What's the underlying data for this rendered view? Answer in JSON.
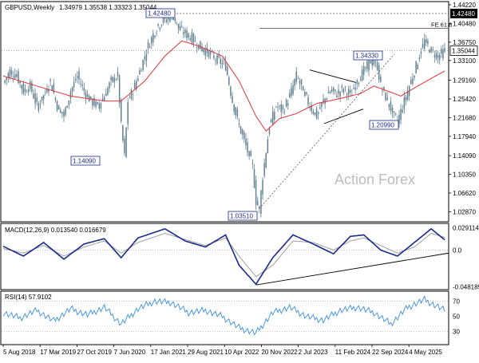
{
  "header": {
    "symbol": "GBPUSD,Weekly",
    "ohlc": "1.34979 1.35538 1.33323 1.35044"
  },
  "watermark": "Action Forex",
  "colors": {
    "candle": "#5f7f8f",
    "ma": "#e0333a",
    "macd": "#1a2a8a",
    "signal": "#a0a0a0",
    "rsi": "#3a8fe0",
    "label_border": "#1a2a8a",
    "label_text": "#1a2a8a",
    "dark_label_bg": "#000000"
  },
  "chart_data": [
    {
      "type": "candlestick",
      "title": "GBPUSD,Weekly",
      "price_axis": [
        "1.44220",
        "1.40480",
        "1.36750",
        "1.33100",
        "1.29160",
        "1.25420",
        "1.21680",
        "1.17940",
        "1.14090",
        "1.10350",
        "1.06620",
        "1.02870"
      ],
      "current_price_label": "1.35044",
      "ylim": [
        1.012,
        1.4422
      ],
      "close_path": [
        [
          0,
          1.285
        ],
        [
          4,
          1.31
        ],
        [
          8,
          1.3
        ],
        [
          12,
          1.27
        ],
        [
          16,
          1.28
        ],
        [
          20,
          1.24
        ],
        [
          24,
          1.26
        ],
        [
          28,
          1.29
        ],
        [
          32,
          1.24
        ],
        [
          36,
          1.22
        ],
        [
          40,
          1.27
        ],
        [
          44,
          1.3
        ],
        [
          48,
          1.27
        ],
        [
          52,
          1.25
        ],
        [
          56,
          1.24
        ],
        [
          60,
          1.26
        ],
        [
          64,
          1.29
        ],
        [
          68,
          1.3
        ],
        [
          70,
          1.2
        ],
        [
          72,
          1.14
        ],
        [
          74,
          1.25
        ],
        [
          78,
          1.28
        ],
        [
          82,
          1.32
        ],
        [
          86,
          1.36
        ],
        [
          90,
          1.39
        ],
        [
          94,
          1.41
        ],
        [
          98,
          1.415
        ],
        [
          101,
          1.42
        ],
        [
          104,
          1.395
        ],
        [
          108,
          1.385
        ],
        [
          112,
          1.375
        ],
        [
          116,
          1.36
        ],
        [
          120,
          1.35
        ],
        [
          124,
          1.34
        ],
        [
          128,
          1.33
        ],
        [
          132,
          1.32
        ],
        [
          136,
          1.25
        ],
        [
          140,
          1.2
        ],
        [
          144,
          1.16
        ],
        [
          148,
          1.12
        ],
        [
          150,
          1.05
        ],
        [
          152,
          1.035
        ],
        [
          154,
          1.1
        ],
        [
          158,
          1.2
        ],
        [
          162,
          1.24
        ],
        [
          166,
          1.23
        ],
        [
          170,
          1.26
        ],
        [
          174,
          1.3
        ],
        [
          178,
          1.27
        ],
        [
          182,
          1.24
        ],
        [
          186,
          1.22
        ],
        [
          190,
          1.25
        ],
        [
          194,
          1.27
        ],
        [
          198,
          1.265
        ],
        [
          202,
          1.275
        ],
        [
          206,
          1.26
        ],
        [
          210,
          1.29
        ],
        [
          214,
          1.31
        ],
        [
          218,
          1.33
        ],
        [
          222,
          1.32
        ],
        [
          224,
          1.28
        ],
        [
          228,
          1.25
        ],
        [
          232,
          1.22
        ],
        [
          234,
          1.21
        ],
        [
          238,
          1.25
        ],
        [
          242,
          1.29
        ],
        [
          246,
          1.33
        ],
        [
          250,
          1.37
        ],
        [
          254,
          1.35
        ],
        [
          258,
          1.34
        ],
        [
          262,
          1.35
        ]
      ],
      "ma_path": [
        [
          0,
          1.3
        ],
        [
          20,
          1.28
        ],
        [
          40,
          1.26
        ],
        [
          60,
          1.25
        ],
        [
          70,
          1.25
        ],
        [
          84,
          1.29
        ],
        [
          96,
          1.34
        ],
        [
          106,
          1.37
        ],
        [
          116,
          1.36
        ],
        [
          130,
          1.34
        ],
        [
          140,
          1.29
        ],
        [
          150,
          1.22
        ],
        [
          156,
          1.19
        ],
        [
          164,
          1.215
        ],
        [
          174,
          1.225
        ],
        [
          186,
          1.245
        ],
        [
          200,
          1.255
        ],
        [
          212,
          1.265
        ],
        [
          220,
          1.28
        ],
        [
          228,
          1.27
        ],
        [
          236,
          1.26
        ],
        [
          246,
          1.28
        ],
        [
          262,
          1.31
        ]
      ],
      "annotations": [
        {
          "text": "1.42480",
          "x": 101,
          "y": 1.4248,
          "dark": false
        },
        {
          "text": "1.14090",
          "x": 72,
          "y": 1.1409,
          "dark": false
        },
        {
          "text": "1.03510",
          "x": 152,
          "y": 1.0351,
          "dark": false
        },
        {
          "text": "1.34330",
          "x": 232,
          "y": 1.3433,
          "dark": false
        },
        {
          "text": "1.20990",
          "x": 236,
          "y": 1.2099,
          "dark": false
        },
        {
          "text": "1.42480",
          "x": 262,
          "y": 1.4248,
          "dark": true
        },
        {
          "text": "FE 61.8",
          "x": 244,
          "y": 1.395,
          "dark": false,
          "plain": true
        }
      ]
    },
    {
      "type": "line",
      "title": "MACD(12,26,9) 0.013540 0.016679",
      "axis_labels": [
        "0.029114",
        "0.0",
        "-0.048189"
      ],
      "macd_path": [
        [
          0,
          0.005
        ],
        [
          12,
          -0.008
        ],
        [
          24,
          0.01
        ],
        [
          36,
          -0.012
        ],
        [
          48,
          0.008
        ],
        [
          60,
          0.015
        ],
        [
          70,
          -0.01
        ],
        [
          80,
          0.016
        ],
        [
          96,
          0.028
        ],
        [
          108,
          0.012
        ],
        [
          120,
          0.004
        ],
        [
          132,
          0.02
        ],
        [
          140,
          -0.02
        ],
        [
          150,
          -0.045
        ],
        [
          160,
          -0.01
        ],
        [
          172,
          0.02
        ],
        [
          184,
          0.008
        ],
        [
          196,
          -0.005
        ],
        [
          206,
          0.018
        ],
        [
          214,
          0.02
        ],
        [
          224,
          0.0
        ],
        [
          234,
          -0.008
        ],
        [
          244,
          0.01
        ],
        [
          254,
          0.028
        ],
        [
          262,
          0.0135
        ]
      ],
      "signal_path": [
        [
          0,
          0.002
        ],
        [
          12,
          -0.004
        ],
        [
          24,
          0.006
        ],
        [
          36,
          -0.008
        ],
        [
          48,
          0.004
        ],
        [
          60,
          0.012
        ],
        [
          70,
          -0.004
        ],
        [
          80,
          0.01
        ],
        [
          96,
          0.022
        ],
        [
          108,
          0.014
        ],
        [
          120,
          0.006
        ],
        [
          132,
          0.016
        ],
        [
          140,
          -0.008
        ],
        [
          150,
          -0.035
        ],
        [
          160,
          -0.02
        ],
        [
          172,
          0.012
        ],
        [
          184,
          0.01
        ],
        [
          196,
          0.0
        ],
        [
          206,
          0.012
        ],
        [
          214,
          0.016
        ],
        [
          224,
          0.006
        ],
        [
          234,
          -0.004
        ],
        [
          244,
          0.004
        ],
        [
          254,
          0.022
        ],
        [
          262,
          0.0167
        ]
      ],
      "ylim": [
        -0.05,
        0.032
      ]
    },
    {
      "type": "line",
      "title": "RSI(14) 57.9102",
      "axis_labels": [
        "70",
        "50",
        "30"
      ],
      "rsi_path": [
        [
          0,
          55
        ],
        [
          10,
          48
        ],
        [
          20,
          58
        ],
        [
          30,
          44
        ],
        [
          40,
          60
        ],
        [
          50,
          52
        ],
        [
          60,
          62
        ],
        [
          70,
          40
        ],
        [
          80,
          60
        ],
        [
          90,
          70
        ],
        [
          100,
          68
        ],
        [
          110,
          55
        ],
        [
          120,
          58
        ],
        [
          130,
          50
        ],
        [
          140,
          35
        ],
        [
          150,
          28
        ],
        [
          160,
          55
        ],
        [
          170,
          62
        ],
        [
          180,
          50
        ],
        [
          190,
          45
        ],
        [
          200,
          58
        ],
        [
          210,
          62
        ],
        [
          220,
          55
        ],
        [
          230,
          40
        ],
        [
          240,
          62
        ],
        [
          250,
          72
        ],
        [
          262,
          57.9
        ]
      ],
      "ylim": [
        15,
        80
      ]
    }
  ],
  "x_axis_labels": [
    "5 Aug 2018",
    "17 Mar 2019",
    "27 Oct 2019",
    "7 Jun 2020",
    "17 Jan 2021",
    "29 Aug 2021",
    "10 Apr 2022",
    "20 Nov 2022",
    "2 Jul 2023",
    "11 Feb 2024",
    "22 Sep 2024",
    "4 May 2025"
  ]
}
